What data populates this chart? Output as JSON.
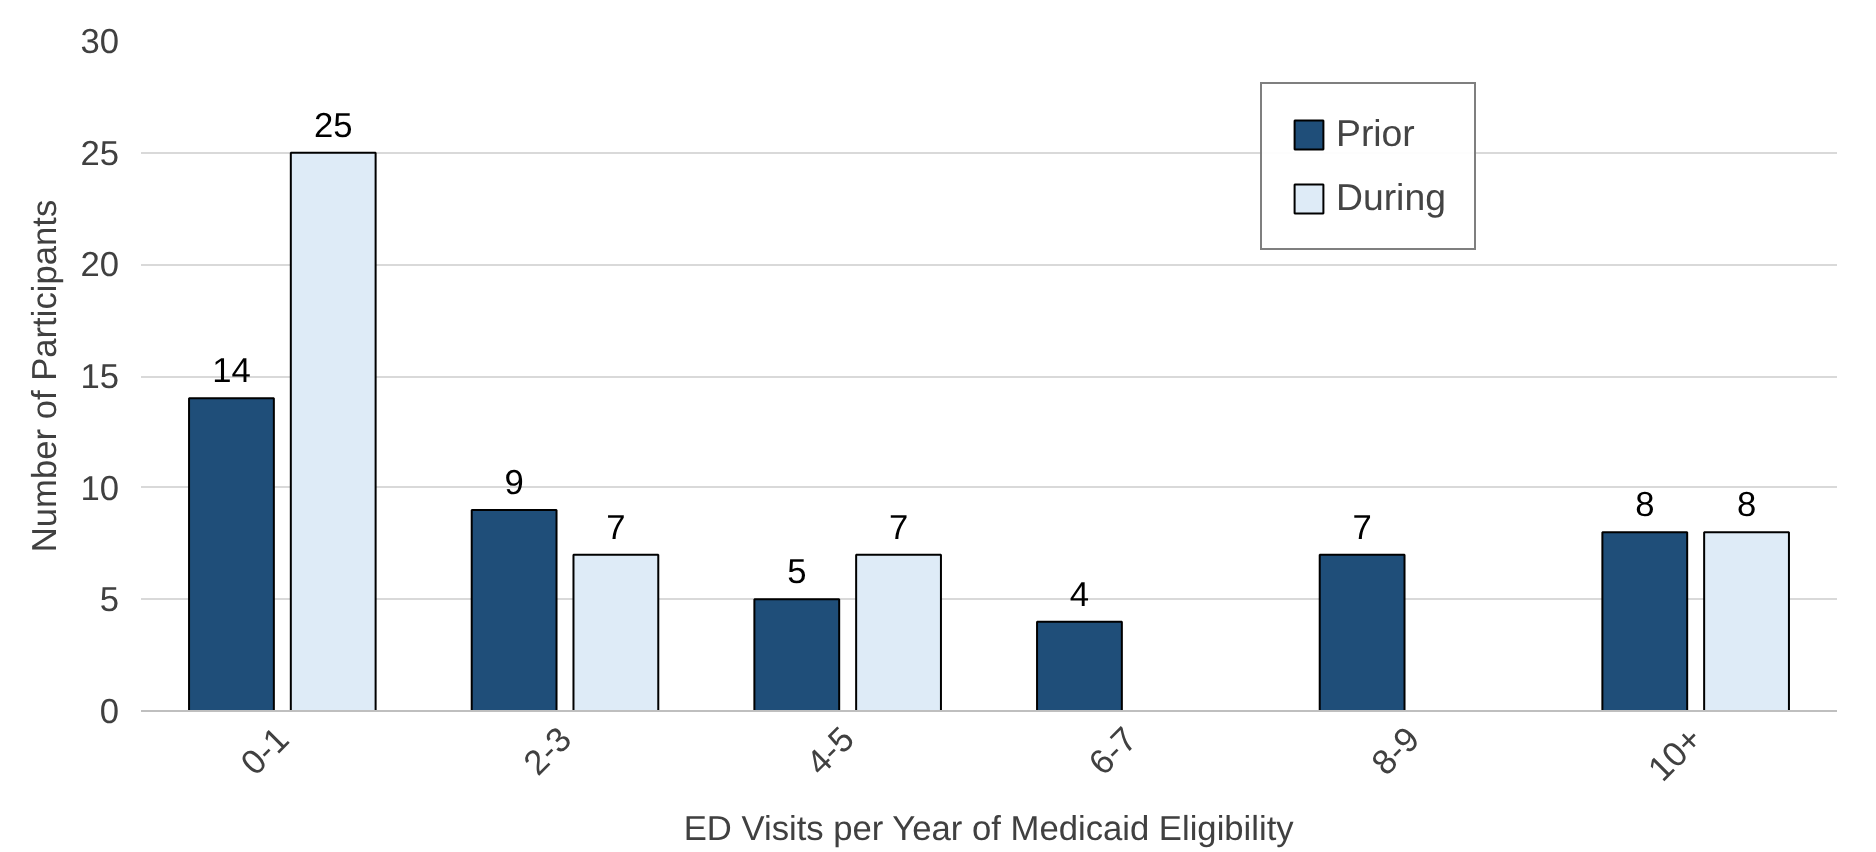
{
  "chart_data": {
    "type": "bar",
    "xlabel": "ED Visits per Year of Medicaid Eligibility",
    "ylabel": "Number of Participants",
    "categories": [
      "0-1",
      "2-3",
      "4-5",
      "6-7",
      "8-9",
      "10+"
    ],
    "series": [
      {
        "name": "Prior",
        "color": "#1f4e79",
        "values": [
          14,
          9,
          5,
          4,
          7,
          8
        ]
      },
      {
        "name": "During",
        "color": "#deebf7",
        "values": [
          25,
          7,
          7,
          null,
          null,
          8
        ]
      }
    ],
    "ylim": [
      0,
      30
    ],
    "yticks": [
      0,
      5,
      10,
      15,
      20,
      25,
      30
    ],
    "grid": "y",
    "legend": "top",
    "data_labels": true
  }
}
